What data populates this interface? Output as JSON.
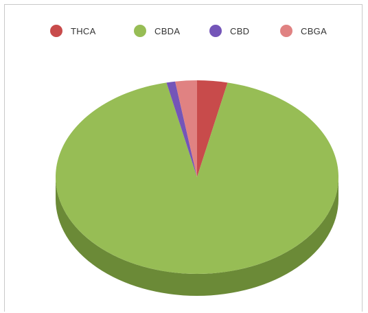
{
  "chart_data": {
    "type": "pie",
    "style": "3d",
    "legend_position": "top",
    "slices": [
      {
        "label": "THCA",
        "value": 3.5,
        "color": "#c84b4b",
        "side_color": "#a33c3c"
      },
      {
        "label": "CBDA",
        "value": 94.0,
        "color": "#97bd55",
        "side_color": "#6b8a37"
      },
      {
        "label": "CBD",
        "value": 1.0,
        "color": "#7455b8",
        "side_color": "#5a4190"
      },
      {
        "label": "CBGA",
        "value": 2.5,
        "color": "#e08282",
        "side_color": "#b86a6a"
      }
    ]
  }
}
